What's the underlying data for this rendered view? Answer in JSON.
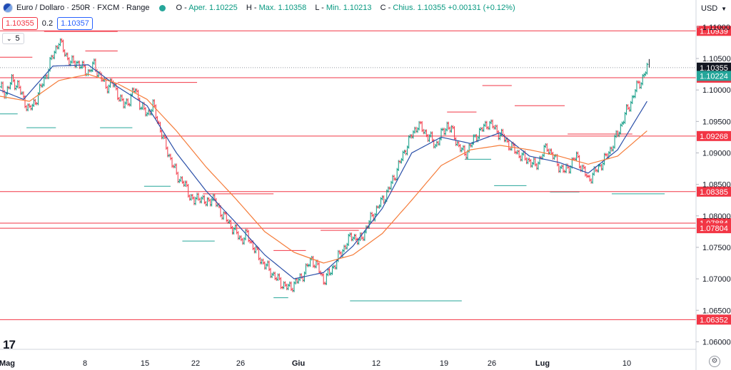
{
  "header": {
    "title": "Euro / Dollaro · 250R · FXCM · Range",
    "ohlc": [
      {
        "label": "O",
        "value": "Aper. 1.10225"
      },
      {
        "label": "H",
        "value": "Max. 1.10358"
      },
      {
        "label": "L",
        "value": "Min. 1.10213"
      },
      {
        "label": "C",
        "value": "Chius. 1.10355 +0.00131 (+0.12%)"
      }
    ]
  },
  "trade": {
    "sell": "1.10355",
    "spread": "0.2",
    "buy": "1.10357"
  },
  "indicator_value": "5",
  "currency": "USD",
  "colors": {
    "up": "#089981",
    "down": "#f23645",
    "level_line": "#f23645",
    "ma_fast": "#2a4fa8",
    "ma_slow": "#f57c3a",
    "support": "#26a69a",
    "resistance": "#f23645",
    "last_price": "#131722"
  },
  "icons": {
    "symbol": "eu-flag-icon",
    "visibility": "eye-dot-icon",
    "logo": "tradingview-logo-icon",
    "settings": "settings-icon"
  },
  "chart_data": {
    "type": "line",
    "symbol": "EURUSD",
    "yrange": [
      1.0588,
      1.1118
    ],
    "price_ticks": [
      "1.06000",
      "1.06500",
      "1.07000",
      "1.07500",
      "1.08000",
      "1.08500",
      "1.09000",
      "1.09500",
      "1.10000",
      "1.10500",
      "1.11000"
    ],
    "x_labels": [
      "Mag",
      "8",
      "15",
      "22",
      "26",
      "Giu",
      "12",
      "19",
      "26",
      "Lug",
      "10"
    ],
    "horizontal_levels": [
      {
        "label": "1.10939",
        "value": 1.10939
      },
      {
        "label": "1.10195",
        "value": 1.10195
      },
      {
        "label": "1.09268",
        "value": 1.09268
      },
      {
        "label": "1.08385",
        "value": 1.08385
      },
      {
        "label": "1.07884",
        "value": 1.07884
      },
      {
        "label": "1.07804",
        "value": 1.07804
      },
      {
        "label": "1.06352",
        "value": 1.06352
      }
    ],
    "axis_badges": [
      {
        "label": "1.10355",
        "value": 1.10355,
        "kind": "last"
      },
      {
        "label": "1.10224",
        "value": 1.10224,
        "kind": "ma"
      },
      {
        "label": "1.10195",
        "value": 1.10195,
        "kind": "level"
      }
    ],
    "last_price": 1.10355,
    "price_path": [
      [
        0,
        1.1005
      ],
      [
        4,
        1.0995
      ],
      [
        8,
        1.1015
      ],
      [
        12,
        1.1008
      ],
      [
        16,
        1.0985
      ],
      [
        20,
        1.0968
      ],
      [
        24,
        1.0982
      ],
      [
        28,
        1.1005
      ],
      [
        32,
        1.1028
      ],
      [
        36,
        1.1055
      ],
      [
        40,
        1.1078
      ],
      [
        44,
        1.106
      ],
      [
        48,
        1.1042
      ],
      [
        52,
        1.1045
      ],
      [
        56,
        1.1035
      ],
      [
        60,
        1.1028
      ],
      [
        64,
        1.104
      ],
      [
        68,
        1.1022
      ],
      [
        72,
        1.1005
      ],
      [
        76,
        1.1012
      ],
      [
        80,
        1.0995
      ],
      [
        84,
        1.0975
      ],
      [
        88,
        1.0985
      ],
      [
        92,
        1.1002
      ],
      [
        96,
        1.0972
      ],
      [
        100,
        1.0962
      ],
      [
        104,
        1.0975
      ],
      [
        108,
        1.0945
      ],
      [
        112,
        1.0915
      ],
      [
        116,
        1.089
      ],
      [
        120,
        1.0865
      ],
      [
        124,
        1.0855
      ],
      [
        128,
        1.0838
      ],
      [
        132,
        1.0822
      ],
      [
        136,
        1.0832
      ],
      [
        140,
        1.0818
      ],
      [
        144,
        1.083
      ],
      [
        148,
        1.0815
      ],
      [
        152,
        1.08
      ],
      [
        156,
        1.0788
      ],
      [
        160,
        1.0775
      ],
      [
        164,
        1.0762
      ],
      [
        168,
        1.077
      ],
      [
        172,
        1.0752
      ],
      [
        176,
        1.0735
      ],
      [
        180,
        1.0722
      ],
      [
        184,
        1.0712
      ],
      [
        188,
        1.07
      ],
      [
        192,
        1.0692
      ],
      [
        196,
        1.0685
      ],
      [
        200,
        1.0692
      ],
      [
        204,
        1.07
      ],
      [
        208,
        1.0715
      ],
      [
        212,
        1.0732
      ],
      [
        216,
        1.0718
      ],
      [
        220,
        1.0698
      ],
      [
        224,
        1.0708
      ],
      [
        228,
        1.0725
      ],
      [
        232,
        1.0742
      ],
      [
        236,
        1.0758
      ],
      [
        240,
        1.077
      ],
      [
        244,
        1.0758
      ],
      [
        248,
        1.0775
      ],
      [
        252,
        1.0795
      ],
      [
        256,
        1.081
      ],
      [
        260,
        1.0825
      ],
      [
        264,
        1.084
      ],
      [
        268,
        1.0862
      ],
      [
        272,
        1.0885
      ],
      [
        276,
        1.0908
      ],
      [
        280,
        1.0928
      ],
      [
        284,
        1.0945
      ],
      [
        288,
        1.0935
      ],
      [
        292,
        1.0925
      ],
      [
        296,
        1.0912
      ],
      [
        300,
        1.0928
      ],
      [
        304,
        1.0945
      ],
      [
        308,
        1.0932
      ],
      [
        312,
        1.091
      ],
      [
        316,
        1.0898
      ],
      [
        320,
        1.0912
      ],
      [
        324,
        1.0928
      ],
      [
        328,
        1.0938
      ],
      [
        332,
        1.0948
      ],
      [
        336,
        1.094
      ],
      [
        340,
        1.093
      ],
      [
        344,
        1.092
      ],
      [
        348,
        1.0908
      ],
      [
        352,
        1.09
      ],
      [
        356,
        1.0892
      ],
      [
        360,
        1.0888
      ],
      [
        364,
        1.0878
      ],
      [
        368,
        1.0895
      ],
      [
        372,
        1.091
      ],
      [
        376,
        1.0895
      ],
      [
        380,
        1.088
      ],
      [
        384,
        1.087
      ],
      [
        388,
        1.0882
      ],
      [
        392,
        1.0895
      ],
      [
        396,
        1.0875
      ],
      [
        400,
        1.0858
      ],
      [
        404,
        1.0868
      ],
      [
        408,
        1.088
      ],
      [
        412,
        1.0892
      ],
      [
        416,
        1.091
      ],
      [
        420,
        1.093
      ],
      [
        424,
        1.0955
      ],
      [
        428,
        1.0975
      ],
      [
        432,
        1.1
      ],
      [
        436,
        1.1015
      ],
      [
        440,
        1.1035
      ]
    ],
    "series": [
      {
        "name": "",
        "values": [
          [
            0,
            1.1
          ],
          [
            16,
            1.0985
          ],
          [
            36,
            1.1038
          ],
          [
            60,
            1.104
          ],
          [
            80,
            1.1005
          ],
          [
            100,
            1.0975
          ],
          [
            120,
            1.09
          ],
          [
            140,
            1.084
          ],
          [
            160,
            1.079
          ],
          [
            180,
            1.0738
          ],
          [
            200,
            1.07
          ],
          [
            220,
            1.071
          ],
          [
            240,
            1.0752
          ],
          [
            260,
            1.0812
          ],
          [
            280,
            1.09
          ],
          [
            300,
            1.0925
          ],
          [
            320,
            1.0915
          ],
          [
            340,
            1.0932
          ],
          [
            360,
            1.0895
          ],
          [
            380,
            1.0885
          ],
          [
            400,
            1.0868
          ],
          [
            420,
            1.0905
          ],
          [
            440,
            1.0982
          ]
        ]
      },
      {
        "name": "",
        "values": [
          [
            0,
            1.099
          ],
          [
            20,
            1.0982
          ],
          [
            40,
            1.1015
          ],
          [
            60,
            1.1025
          ],
          [
            80,
            1.101
          ],
          [
            100,
            1.0985
          ],
          [
            120,
            1.0935
          ],
          [
            140,
            1.0878
          ],
          [
            160,
            1.0828
          ],
          [
            180,
            1.0775
          ],
          [
            200,
            1.0742
          ],
          [
            220,
            1.0725
          ],
          [
            240,
            1.0738
          ],
          [
            260,
            1.0772
          ],
          [
            280,
            1.0825
          ],
          [
            300,
            1.088
          ],
          [
            320,
            1.0905
          ],
          [
            340,
            1.0912
          ],
          [
            360,
            1.0905
          ],
          [
            380,
            1.0895
          ],
          [
            400,
            1.0882
          ],
          [
            420,
            1.0895
          ],
          [
            440,
            1.0935
          ]
        ]
      }
    ],
    "swing_markers": [
      {
        "type": "resistance",
        "x": [
          0,
          22
        ],
        "y": 1.1052
      },
      {
        "type": "resistance",
        "x": [
          30,
          80
        ],
        "y": 1.1093
      },
      {
        "type": "resistance",
        "x": [
          58,
          80
        ],
        "y": 1.1062
      },
      {
        "type": "resistance",
        "x": [
          80,
          134
        ],
        "y": 1.1012
      },
      {
        "type": "resistance",
        "x": [
          138,
          186
        ],
        "y": 1.0835
      },
      {
        "type": "resistance",
        "x": [
          186,
          208
        ],
        "y": 1.0745
      },
      {
        "type": "resistance",
        "x": [
          218,
          244
        ],
        "y": 1.0777
      },
      {
        "type": "resistance",
        "x": [
          304,
          324
        ],
        "y": 1.0965
      },
      {
        "type": "resistance",
        "x": [
          328,
          348
        ],
        "y": 1.1007
      },
      {
        "type": "resistance",
        "x": [
          350,
          384
        ],
        "y": 1.0975
      },
      {
        "type": "resistance",
        "x": [
          386,
          430
        ],
        "y": 1.093
      },
      {
        "type": "support",
        "x": [
          0,
          12
        ],
        "y": 1.0962
      },
      {
        "type": "support",
        "x": [
          18,
          38
        ],
        "y": 1.094
      },
      {
        "type": "support",
        "x": [
          68,
          90
        ],
        "y": 1.094
      },
      {
        "type": "support",
        "x": [
          98,
          116
        ],
        "y": 1.0847
      },
      {
        "type": "support",
        "x": [
          124,
          146
        ],
        "y": 1.076
      },
      {
        "type": "support",
        "x": [
          186,
          196
        ],
        "y": 1.067
      },
      {
        "type": "support",
        "x": [
          238,
          314
        ],
        "y": 1.0665
      },
      {
        "type": "support",
        "x": [
          316,
          334
        ],
        "y": 1.089
      },
      {
        "type": "support",
        "x": [
          336,
          358
        ],
        "y": 1.0848
      },
      {
        "type": "support",
        "x": [
          374,
          394
        ],
        "y": 1.0838
      },
      {
        "type": "support",
        "x": [
          416,
          452
        ],
        "y": 1.0835
      }
    ],
    "legend": "top-left"
  }
}
